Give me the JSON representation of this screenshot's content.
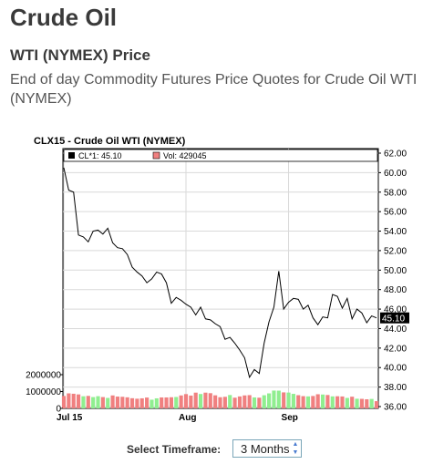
{
  "header": {
    "title": "Crude Oil",
    "subtitle": "WTI (NYMEX) Price",
    "description": "End of day Commodity Futures Price Quotes for Crude Oil WTI (NYMEX)"
  },
  "timeframe": {
    "label": "Select Timeframe:",
    "value": "3 Months"
  },
  "chart_data": {
    "type": "line",
    "title": "CLX15 - Crude Oil WTI (NYMEX)",
    "legend": {
      "price_label": "CL*1: 45.10",
      "volume_label": "Vol: 429045",
      "placement": "top-left"
    },
    "last_price_label": "45.10",
    "price_ylim": [
      36,
      62
    ],
    "price_ticks": [
      "62.00",
      "60.00",
      "58.00",
      "56.00",
      "54.00",
      "52.00",
      "50.00",
      "48.00",
      "46.00",
      "44.00",
      "42.00",
      "40.00",
      "38.00",
      "36.00"
    ],
    "volume_ticks": [
      {
        "value": 2000000,
        "label": "2000000"
      },
      {
        "value": 1000000,
        "label": "1000000"
      },
      {
        "value": 0,
        "label": "0"
      }
    ],
    "x_labels": [
      {
        "index": 0,
        "label": "Jul 15"
      },
      {
        "index": 25,
        "label": "Aug"
      },
      {
        "index": 46,
        "label": "Sep"
      }
    ],
    "colors": {
      "price_line": "#000000",
      "volume_up": "#90ee90",
      "volume_down": "#f08080",
      "grid": "#d9d9d9",
      "last_price_bg": "#000000"
    },
    "series": [
      {
        "values": [
          60.5,
          58.2,
          58.0,
          53.6,
          53.4,
          52.9,
          54.0,
          54.1,
          53.7,
          54.3,
          52.8,
          52.3,
          52.2,
          51.6,
          50.3,
          49.8,
          49.4,
          48.7,
          49.1,
          49.8,
          49.6,
          48.7,
          46.6,
          47.2,
          46.9,
          46.5,
          46.2,
          45.4,
          46.2,
          45.0,
          44.9,
          44.5,
          44.2,
          42.9,
          43.1,
          42.5,
          41.8,
          41.0,
          39.0,
          39.8,
          39.4,
          42.5,
          44.7,
          46.2,
          49.9,
          46.0,
          46.7,
          47.1,
          47.0,
          46.0,
          46.4,
          45.1,
          44.4,
          45.2,
          45.1,
          47.5,
          47.3,
          46.1,
          47.1,
          45.0,
          46.0,
          45.6,
          44.6,
          45.3,
          45.1
        ]
      },
      {
        "values": [
          736000,
          892000,
          868000,
          829000,
          720000,
          741000,
          671000,
          724000,
          671000,
          620000,
          768000,
          700000,
          688000,
          657000,
          603000,
          574000,
          597000,
          643000,
          516000,
          596000,
          650000,
          650000,
          662000,
          677000,
          768000,
          848000,
          760000,
          934000,
          853000,
          934000,
          902000,
          775000,
          663000,
          686000,
          792000,
          636000,
          710000,
          770000,
          786000,
          651000,
          634000,
          779000,
          890000,
          1057000,
          1052000,
          949000,
          939000,
          862000,
          783000,
          726000,
          712000,
          736000,
          839000,
          822000,
          795000,
          714000,
          720000,
          708000,
          620000,
          693000,
          573000,
          565000,
          541000,
          560000,
          429045
        ],
        "up": [
          0,
          0,
          0,
          0,
          1,
          0,
          1,
          1,
          0,
          1,
          0,
          0,
          0,
          0,
          0,
          0,
          0,
          0,
          1,
          1,
          0,
          0,
          0,
          1,
          0,
          0,
          0,
          0,
          1,
          0,
          0,
          0,
          0,
          0,
          1,
          0,
          0,
          0,
          0,
          1,
          0,
          1,
          1,
          1,
          1,
          0,
          1,
          1,
          0,
          0,
          1,
          0,
          0,
          1,
          0,
          1,
          0,
          0,
          1,
          0,
          1,
          0,
          0,
          1,
          0
        ]
      }
    ]
  }
}
